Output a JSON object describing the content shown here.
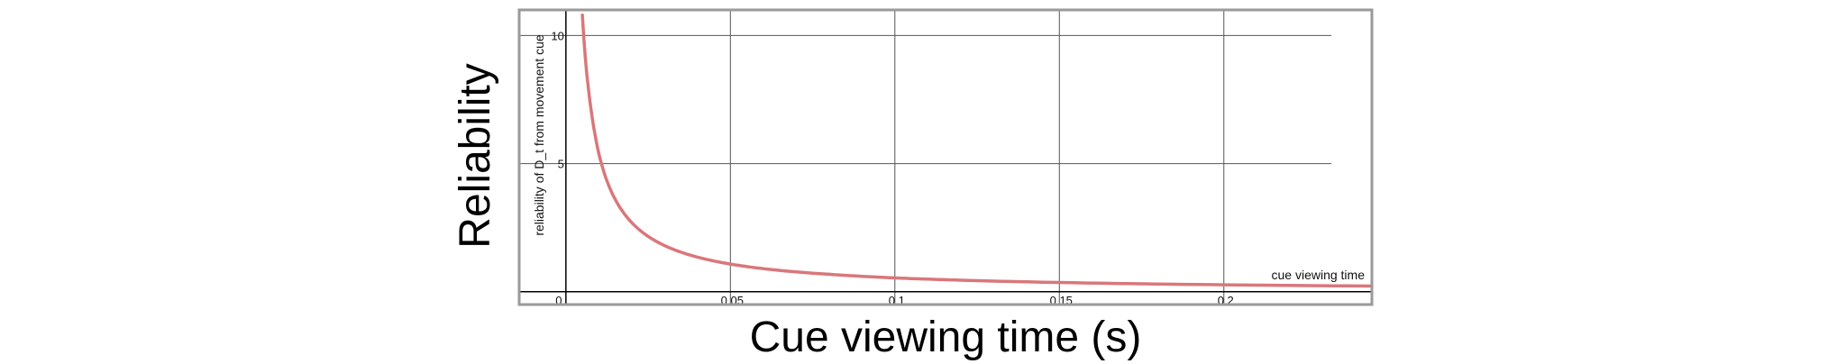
{
  "chart_data": {
    "type": "line",
    "title": "",
    "xlabel": "Cue viewing time (s)",
    "ylabel": "Reliability",
    "inner_xlabel": "cue viewing time",
    "inner_ylabel": "reliability of D_t from movement cue",
    "xlim": [
      -0.0142,
      0.245
    ],
    "ylim": [
      -0.5,
      11.0
    ],
    "x_ticks": [
      0.05,
      0.1,
      0.15,
      0.2
    ],
    "x_tick_labels": [
      "0.05",
      "0.1",
      "0.15",
      "0.2"
    ],
    "origin_label": "0",
    "y_ticks": [
      5,
      10
    ],
    "y_tick_labels": [
      "5",
      "10"
    ],
    "grid": true,
    "legend": "none",
    "series": [
      {
        "color": "#d9777b",
        "x": [
          0.005,
          0.006,
          0.008,
          0.01,
          0.012,
          0.015,
          0.02,
          0.025,
          0.03,
          0.04,
          0.05,
          0.06,
          0.08,
          0.1,
          0.12,
          0.15,
          0.2,
          0.245
        ],
        "y": [
          10.8,
          9.0,
          6.8,
          5.4,
          4.5,
          3.6,
          2.7,
          2.16,
          1.8,
          1.35,
          1.08,
          0.9,
          0.68,
          0.54,
          0.45,
          0.36,
          0.27,
          0.22
        ]
      }
    ]
  }
}
